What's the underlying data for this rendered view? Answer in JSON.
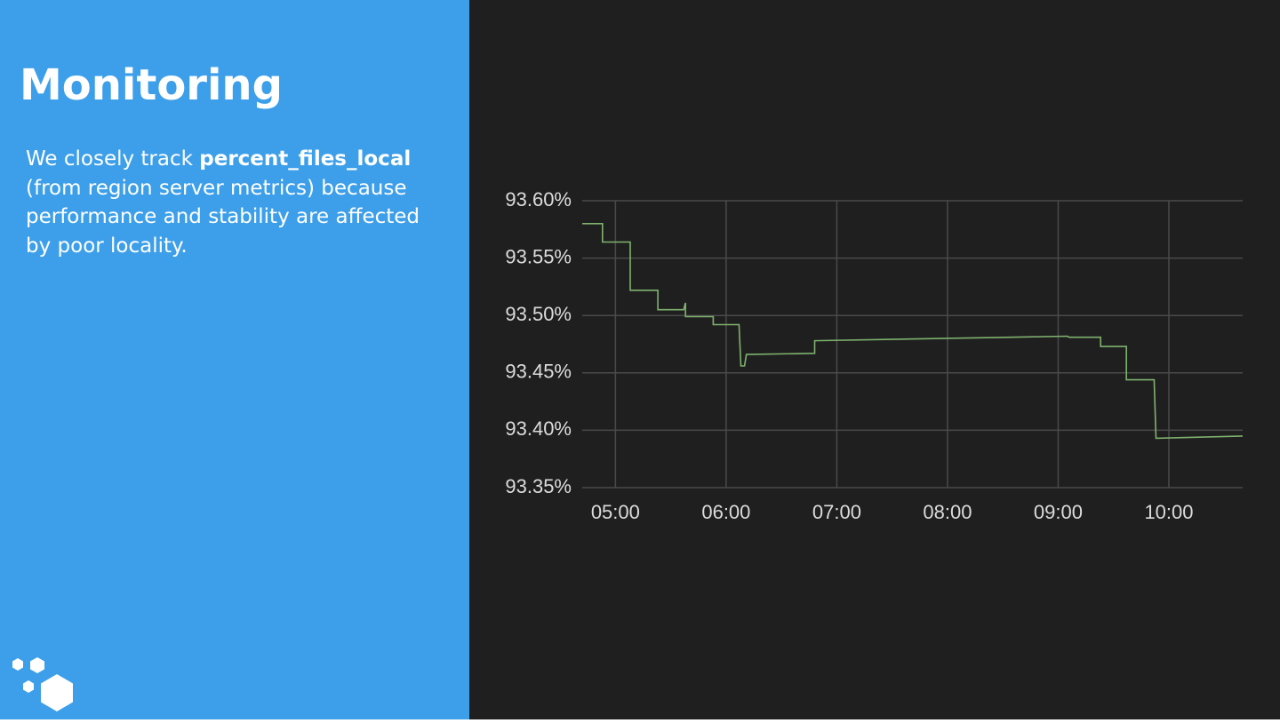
{
  "slide": {
    "title": "Monitoring",
    "body": [
      "We closely track ",
      "percent_files_local",
      " (from region server metrics) because performance and stability are affected by poor locality."
    ]
  },
  "chart_data": {
    "type": "line",
    "color": "#7eb26d",
    "grid": true,
    "x": [
      "04:42",
      "04:53",
      "04:53",
      "05:08",
      "05:08",
      "05:23",
      "05:23",
      "05:37",
      "05:38",
      "05:38",
      "05:53",
      "05:53",
      "06:07",
      "06:08",
      "06:10",
      "06:11",
      "06:48",
      "06:48",
      "09:05",
      "09:06",
      "09:23",
      "09:23",
      "09:37",
      "09:37",
      "09:52",
      "09:53",
      "10:40"
    ],
    "values": [
      93.58,
      93.58,
      93.564,
      93.564,
      93.522,
      93.522,
      93.505,
      93.505,
      93.511,
      93.499,
      93.499,
      93.492,
      93.492,
      93.456,
      93.456,
      93.466,
      93.467,
      93.478,
      93.482,
      93.481,
      93.481,
      93.473,
      93.473,
      93.444,
      93.444,
      93.393,
      93.395
    ],
    "xlim": [
      "04:42",
      "10:40"
    ],
    "xticks": [
      "05:00",
      "06:00",
      "07:00",
      "08:00",
      "09:00",
      "10:00"
    ],
    "ylim": [
      93.35,
      93.6
    ],
    "yticks": [
      {
        "value": 93.35,
        "label": "93.35%"
      },
      {
        "value": 93.4,
        "label": "93.40%"
      },
      {
        "value": 93.45,
        "label": "93.45%"
      },
      {
        "value": 93.5,
        "label": "93.50%"
      },
      {
        "value": 93.55,
        "label": "93.55%"
      },
      {
        "value": 93.6,
        "label": "93.60%"
      }
    ]
  }
}
